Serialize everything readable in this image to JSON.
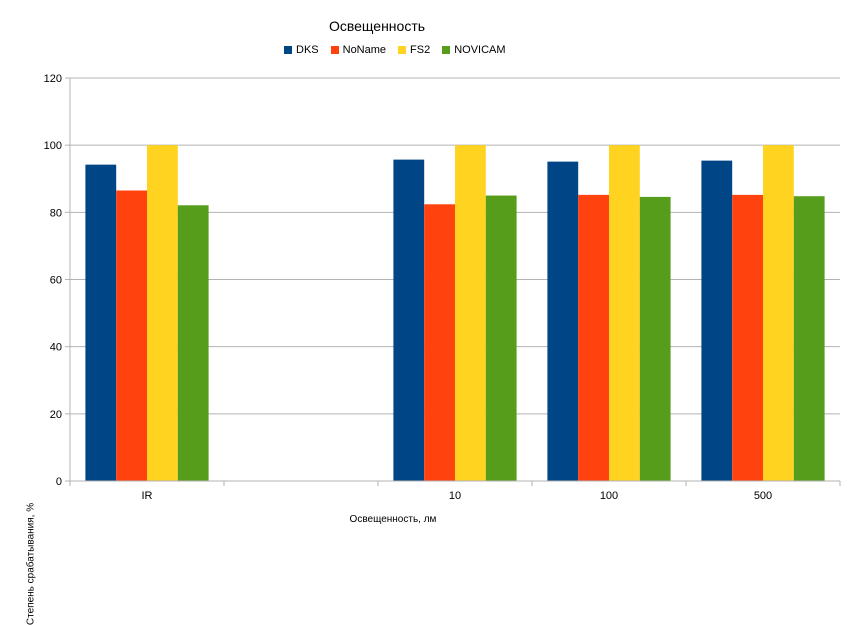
{
  "chart_data": {
    "type": "bar",
    "title": "Освещенность",
    "xlabel": "Освещенность, лм",
    "ylabel": "Степень срабатывания, %",
    "categories": [
      "IR",
      "",
      "10",
      "100",
      "500"
    ],
    "series": [
      {
        "name": "DKS",
        "color": "#004586",
        "values": [
          94.2,
          null,
          95.7,
          95.1,
          95.4
        ]
      },
      {
        "name": "NoName",
        "color": "#ff420e",
        "values": [
          86.5,
          null,
          82.4,
          85.2,
          85.2
        ]
      },
      {
        "name": "FS2",
        "color": "#ffd320",
        "values": [
          100,
          null,
          100,
          100,
          100
        ]
      },
      {
        "name": "NOVICAM",
        "color": "#579d1c",
        "values": [
          82.1,
          null,
          85.0,
          84.6,
          84.8
        ]
      }
    ],
    "ylim": [
      0,
      120
    ],
    "yticks": [
      0,
      20,
      40,
      60,
      80,
      100,
      120
    ],
    "grid": true,
    "legend_position": "top"
  }
}
